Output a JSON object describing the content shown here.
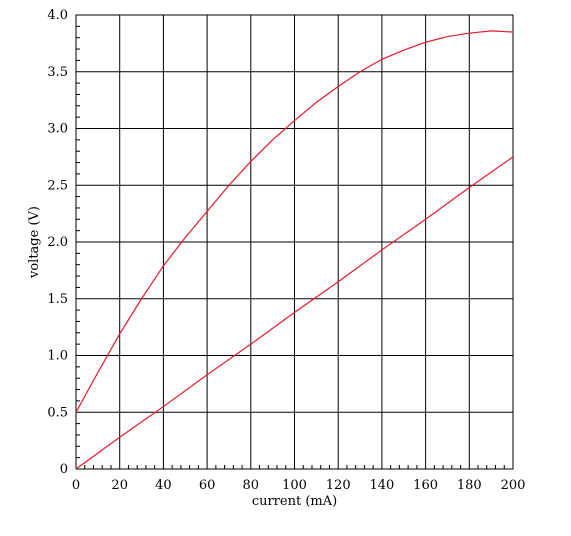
{
  "chart_data": {
    "type": "line",
    "title": "",
    "xlabel": "current (mA)",
    "ylabel": "voltage (V)",
    "xlim": [
      0,
      200
    ],
    "ylim": [
      0,
      4.0
    ],
    "x_ticks": [
      "0",
      "20",
      "40",
      "60",
      "80",
      "100",
      "120",
      "140",
      "160",
      "180",
      "200"
    ],
    "y_ticks": [
      "0",
      "0.5",
      "1.0",
      "1.5",
      "2.0",
      "2.5",
      "3.0",
      "3.5",
      "4.0"
    ],
    "grid": true,
    "line_color": "#e8192c",
    "series": [
      {
        "x": [
          0,
          10,
          20,
          30,
          40,
          50,
          60,
          70,
          80,
          90,
          100,
          110,
          120,
          130,
          140,
          150,
          160,
          170,
          180,
          190,
          200
        ],
        "y": [
          0.5,
          0.85,
          1.19,
          1.5,
          1.79,
          2.04,
          2.27,
          2.5,
          2.71,
          2.9,
          3.07,
          3.23,
          3.37,
          3.5,
          3.61,
          3.69,
          3.76,
          3.81,
          3.84,
          3.86,
          3.85
        ]
      },
      {
        "x": [
          0,
          20,
          40,
          60,
          80,
          100,
          120,
          140,
          160,
          180,
          200
        ],
        "y": [
          0.0,
          0.28,
          0.55,
          0.83,
          1.1,
          1.38,
          1.65,
          1.93,
          2.2,
          2.48,
          2.75
        ]
      }
    ]
  }
}
